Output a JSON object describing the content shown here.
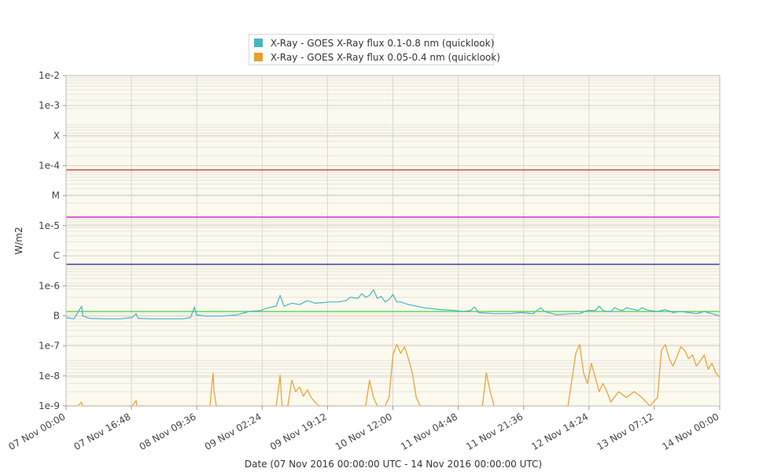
{
  "chart_data": {
    "type": "line",
    "title": "",
    "xlabel": "Date (07 Nov 2016 00:00:00 UTC - 14 Nov 2016 00:00:00 UTC)",
    "ylabel": "W/m2",
    "y_scale": "log",
    "ylim": [
      1e-09,
      0.01
    ],
    "x_range_hours": [
      0,
      168
    ],
    "y_ticks": [
      "1e-9",
      "1e-8",
      "1e-7",
      "B",
      "1e-6",
      "C",
      "1e-5",
      "M",
      "1e-4",
      "X",
      "1e-3",
      "1e-2"
    ],
    "x_ticks": [
      {
        "hours": 0,
        "label": "07 Nov 00:00"
      },
      {
        "hours": 16.8,
        "label": "07 Nov 16:48"
      },
      {
        "hours": 33.6,
        "label": "08 Nov 09:36"
      },
      {
        "hours": 50.4,
        "label": "09 Nov 02:24"
      },
      {
        "hours": 67.2,
        "label": "09 Nov 19:12"
      },
      {
        "hours": 84,
        "label": "10 Nov 12:00"
      },
      {
        "hours": 100.8,
        "label": "11 Nov 04:48"
      },
      {
        "hours": 117.6,
        "label": "11 Nov 21:36"
      },
      {
        "hours": 134.4,
        "label": "12 Nov 14:24"
      },
      {
        "hours": 151.2,
        "label": "13 Nov 07:12"
      },
      {
        "hours": 168,
        "label": "14 Nov 00:00"
      }
    ],
    "threshold_lines": [
      {
        "value": 0.0001,
        "color": "#d42020"
      },
      {
        "value": 1e-05,
        "color": "#d100d1"
      },
      {
        "value": 1e-06,
        "color": "#1a1a8c"
      },
      {
        "value": 1e-07,
        "color": "#3ed33e"
      }
    ],
    "legend_position": "top",
    "grid": true,
    "background_color": "#fcf9ef",
    "series": [
      {
        "name": "X-Ray - GOES X-Ray flux 0.1-0.8 nm (quicklook)",
        "color": "#49b3c0",
        "points": [
          [
            0,
            7.5e-08
          ],
          [
            2,
            7e-08
          ],
          [
            4,
            1.3e-07
          ],
          [
            4.3,
            8e-08
          ],
          [
            6,
            7.2e-08
          ],
          [
            10,
            7e-08
          ],
          [
            14,
            7e-08
          ],
          [
            17,
            7.5e-08
          ],
          [
            18,
            9e-08
          ],
          [
            18.5,
            7.2e-08
          ],
          [
            22,
            7e-08
          ],
          [
            26,
            7e-08
          ],
          [
            30,
            7e-08
          ],
          [
            32,
            7.5e-08
          ],
          [
            33,
            1.25e-07
          ],
          [
            33.5,
            8.5e-08
          ],
          [
            36,
            8e-08
          ],
          [
            40,
            8e-08
          ],
          [
            44,
            8.5e-08
          ],
          [
            47,
            1e-07
          ],
          [
            50,
            1.05e-07
          ],
          [
            52,
            1.2e-07
          ],
          [
            54,
            1.3e-07
          ],
          [
            55,
            2.2e-07
          ],
          [
            56,
            1.3e-07
          ],
          [
            58,
            1.5e-07
          ],
          [
            60,
            1.4e-07
          ],
          [
            62,
            1.7e-07
          ],
          [
            64,
            1.5e-07
          ],
          [
            66,
            1.55e-07
          ],
          [
            68,
            1.6e-07
          ],
          [
            70,
            1.6e-07
          ],
          [
            72,
            1.7e-07
          ],
          [
            73,
            2e-07
          ],
          [
            75,
            1.9e-07
          ],
          [
            76,
            2.4e-07
          ],
          [
            77,
            2e-07
          ],
          [
            78,
            2.2e-07
          ],
          [
            79,
            2.9e-07
          ],
          [
            80,
            1.9e-07
          ],
          [
            81,
            2.1e-07
          ],
          [
            82,
            1.6e-07
          ],
          [
            83,
            1.8e-07
          ],
          [
            84,
            2.3e-07
          ],
          [
            85,
            1.6e-07
          ],
          [
            86,
            1.6e-07
          ],
          [
            88,
            1.4e-07
          ],
          [
            90,
            1.3e-07
          ],
          [
            92,
            1.2e-07
          ],
          [
            94,
            1.15e-07
          ],
          [
            96,
            1.1e-07
          ],
          [
            100,
            1.05e-07
          ],
          [
            102,
            1e-07
          ],
          [
            104,
            1.05e-07
          ],
          [
            105,
            1.25e-07
          ],
          [
            106,
            9.5e-08
          ],
          [
            110,
            9e-08
          ],
          [
            114,
            9e-08
          ],
          [
            117,
            9.5e-08
          ],
          [
            120,
            9e-08
          ],
          [
            122,
            1.2e-07
          ],
          [
            123,
            1e-07
          ],
          [
            124,
            9.5e-08
          ],
          [
            126,
            8.5e-08
          ],
          [
            130,
            9e-08
          ],
          [
            132,
            9e-08
          ],
          [
            134,
            1.05e-07
          ],
          [
            136,
            1.05e-07
          ],
          [
            137,
            1.3e-07
          ],
          [
            138,
            1.05e-07
          ],
          [
            139,
            1e-07
          ],
          [
            140,
            1e-07
          ],
          [
            141,
            1.2e-07
          ],
          [
            142,
            1.1e-07
          ],
          [
            143,
            1.05e-07
          ],
          [
            144,
            1.2e-07
          ],
          [
            145,
            1.15e-07
          ],
          [
            146,
            1.1e-07
          ],
          [
            147,
            1.05e-07
          ],
          [
            148,
            1.2e-07
          ],
          [
            149,
            1.1e-07
          ],
          [
            150,
            1.05e-07
          ],
          [
            152,
            1e-07
          ],
          [
            154,
            1.1e-07
          ],
          [
            156,
            9.5e-08
          ],
          [
            158,
            1e-07
          ],
          [
            160,
            9.5e-08
          ],
          [
            162,
            9e-08
          ],
          [
            164,
            1e-07
          ],
          [
            166,
            9e-08
          ],
          [
            168,
            8e-08
          ]
        ]
      },
      {
        "name": "X-Ray - GOES X-Ray flux 0.05-0.4 nm (quicklook)",
        "color": "#e9a02b",
        "points": [
          [
            0,
            1e-09
          ],
          [
            3,
            1e-09
          ],
          [
            4,
            1.2e-09
          ],
          [
            4.2,
            1e-09
          ],
          [
            10,
            1e-09
          ],
          [
            17,
            1e-09
          ],
          [
            18,
            1.3e-09
          ],
          [
            18.2,
            1e-09
          ],
          [
            32,
            1e-09
          ],
          [
            37,
            1e-09
          ],
          [
            37.5,
            3e-09
          ],
          [
            37.8,
            5e-09
          ],
          [
            38,
            2e-09
          ],
          [
            38.3,
            1.5e-09
          ],
          [
            38.6,
            1e-09
          ],
          [
            48,
            1e-09
          ],
          [
            54,
            1e-09
          ],
          [
            54.5,
            2e-09
          ],
          [
            55,
            4.5e-09
          ],
          [
            55.5,
            1e-09
          ],
          [
            57,
            1e-09
          ],
          [
            58,
            3.5e-09
          ],
          [
            59,
            2e-09
          ],
          [
            60,
            2.5e-09
          ],
          [
            61,
            1.6e-09
          ],
          [
            62,
            2.2e-09
          ],
          [
            63,
            1.5e-09
          ],
          [
            64,
            1.2e-09
          ],
          [
            65,
            1e-09
          ],
          [
            70,
            1e-09
          ],
          [
            77,
            1e-09
          ],
          [
            78,
            3.5e-09
          ],
          [
            79,
            1.5e-09
          ],
          [
            80,
            1e-09
          ],
          [
            82,
            1e-09
          ],
          [
            83,
            1.5e-09
          ],
          [
            84,
            1.2e-08
          ],
          [
            85,
            2e-08
          ],
          [
            86,
            1.3e-08
          ],
          [
            87,
            1.8e-08
          ],
          [
            88,
            1e-08
          ],
          [
            89,
            5e-09
          ],
          [
            90,
            1.5e-09
          ],
          [
            91,
            1e-09
          ],
          [
            100,
            1e-09
          ],
          [
            107,
            1e-09
          ],
          [
            108,
            5e-09
          ],
          [
            109,
            2e-09
          ],
          [
            110,
            1e-09
          ],
          [
            120,
            1e-09
          ],
          [
            129,
            1e-09
          ],
          [
            131,
            1.3e-08
          ],
          [
            132,
            2e-08
          ],
          [
            133,
            5e-09
          ],
          [
            134,
            3e-09
          ],
          [
            135,
            8e-09
          ],
          [
            136,
            4e-09
          ],
          [
            137,
            2e-09
          ],
          [
            138,
            3e-09
          ],
          [
            139,
            2e-09
          ],
          [
            140,
            1.2e-09
          ],
          [
            142,
            2e-09
          ],
          [
            144,
            1.5e-09
          ],
          [
            146,
            2e-09
          ],
          [
            148,
            1.5e-09
          ],
          [
            150,
            1e-09
          ],
          [
            152,
            1.5e-09
          ],
          [
            153,
            1.5e-08
          ],
          [
            154,
            2e-08
          ],
          [
            155,
            1e-08
          ],
          [
            156,
            7e-09
          ],
          [
            157,
            1.1e-08
          ],
          [
            158,
            1.8e-08
          ],
          [
            159,
            1.5e-08
          ],
          [
            160,
            1e-08
          ],
          [
            161,
            1.2e-08
          ],
          [
            162,
            7e-09
          ],
          [
            163,
            9e-09
          ],
          [
            164,
            1.2e-08
          ],
          [
            165,
            6e-09
          ],
          [
            166,
            8e-09
          ],
          [
            167,
            5e-09
          ],
          [
            168,
            4e-09
          ]
        ]
      }
    ]
  }
}
